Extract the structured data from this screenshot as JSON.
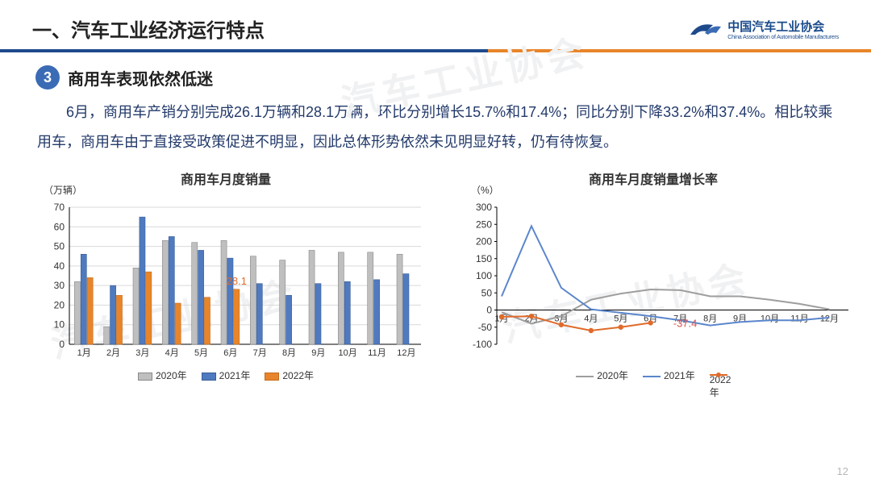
{
  "header": {
    "title": "一、汽车工业经济运行特点",
    "logo_text": "中国汽车工业协会",
    "logo_sub": "China Association of Automobile Manufacturers",
    "underline_blue": "#1e4a8c",
    "underline_orange": "#e8852a"
  },
  "section": {
    "index": "3",
    "badge_bg": "#3b6bb5",
    "title": "商用车表现依然低迷",
    "body": "6月，商用车产销分别完成26.1万辆和28.1万辆，环比分别增长15.7%和17.4%；同比分别下降33.2%和37.4%。相比较乘用车，商用车由于直接受政策促进不明显，因此总体形势依然未见明显好转，仍有待恢复。",
    "body_color": "#233a6a"
  },
  "bar_chart": {
    "type": "bar",
    "title": "商用车月度销量",
    "y_unit": "（万辆）",
    "categories": [
      "1月",
      "2月",
      "3月",
      "4月",
      "5月",
      "6月",
      "7月",
      "8月",
      "9月",
      "10月",
      "11月",
      "12月"
    ],
    "ylim": [
      0,
      70
    ],
    "ytick_step": 10,
    "series": [
      {
        "name": "2020年",
        "color": "#bfbfbf",
        "stroke": "#8a8a8a",
        "values": [
          32,
          9,
          39,
          53,
          52,
          53,
          45,
          43,
          48,
          47,
          47,
          46
        ]
      },
      {
        "name": "2021年",
        "color": "#4f7ac0",
        "stroke": "#3a5d96",
        "values": [
          46,
          30,
          65,
          55,
          48,
          44,
          31,
          25,
          31,
          32,
          33,
          36
        ]
      },
      {
        "name": "2022年",
        "color": "#e8852a",
        "stroke": "#c46b1e",
        "values": [
          34,
          25,
          37,
          21,
          24,
          28.1
        ]
      }
    ],
    "callout": {
      "idx": 5,
      "series": 2,
      "label": "28.1",
      "color": "#e06a2a"
    },
    "axis_color": "#000",
    "grid_color": "#d9d9d9",
    "label_fontsize": 12,
    "title_fontsize": 16,
    "bar_gap": 0.55,
    "group_gap": 0.35
  },
  "line_chart": {
    "type": "line",
    "title": "商用车月度销量增长率",
    "y_unit": "（%）",
    "categories": [
      "1月",
      "2月",
      "3月",
      "4月",
      "5月",
      "6月",
      "7月",
      "8月",
      "9月",
      "10月",
      "11月",
      "12月"
    ],
    "ylim": [
      -100,
      300
    ],
    "ytick_step": 50,
    "series": [
      {
        "name": "2020年",
        "color": "#9e9e9e",
        "width": 2,
        "marker": false,
        "values": [
          -6,
          -40,
          -18,
          30,
          48,
          60,
          58,
          40,
          40,
          30,
          18,
          2
        ]
      },
      {
        "name": "2021年",
        "color": "#5a86cc",
        "width": 2,
        "marker": false,
        "values": [
          40,
          245,
          65,
          2,
          -8,
          -18,
          -30,
          -45,
          -35,
          -30,
          -30,
          -22
        ]
      },
      {
        "name": "2022年",
        "color": "#e06a2a",
        "width": 2,
        "marker": true,
        "values": [
          -20,
          -18,
          -43,
          -60,
          -50,
          -37.4
        ]
      }
    ],
    "callout": {
      "idx": 5,
      "series": 2,
      "label": "-37.4",
      "color": "#d9534f"
    },
    "axis_color": "#000",
    "grid_color": "#e0e0e0",
    "label_fontsize": 12,
    "title_fontsize": 16
  },
  "page_number": "12",
  "watermark": "汽车工业协会"
}
